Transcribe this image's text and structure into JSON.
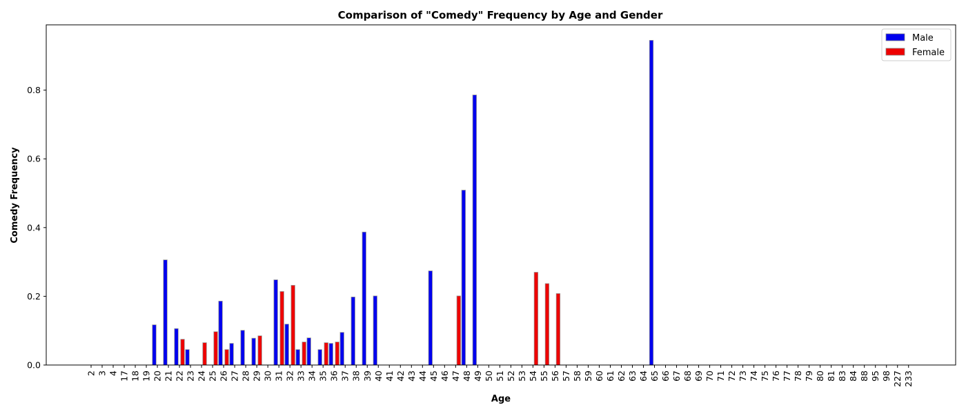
{
  "chart_data": {
    "type": "bar",
    "title": "Comparison of \"Comedy\" Frequency by Age and Gender",
    "xlabel": "Age",
    "ylabel": "Comedy Frequency",
    "ylim": [
      0,
      0.99
    ],
    "yticks": [
      "0.0",
      "0.2",
      "0.4",
      "0.6",
      "0.8"
    ],
    "legend_position": "top-right",
    "grid": false,
    "categories": [
      "2",
      "3",
      "4",
      "17",
      "18",
      "19",
      "20",
      "21",
      "22",
      "23",
      "24",
      "25",
      "26",
      "27",
      "28",
      "29",
      "30",
      "31",
      "32",
      "33",
      "34",
      "35",
      "36",
      "37",
      "38",
      "39",
      "40",
      "41",
      "42",
      "43",
      "44",
      "45",
      "46",
      "47",
      "48",
      "49",
      "50",
      "51",
      "52",
      "53",
      "54",
      "55",
      "56",
      "57",
      "58",
      "59",
      "60",
      "61",
      "62",
      "63",
      "64",
      "65",
      "66",
      "67",
      "68",
      "69",
      "70",
      "71",
      "72",
      "73",
      "74",
      "75",
      "76",
      "77",
      "78",
      "79",
      "80",
      "81",
      "83",
      "84",
      "88",
      "95",
      "98",
      "227",
      "233"
    ],
    "series": [
      {
        "name": "Male",
        "color": "#0000ee",
        "values": [
          0,
          0,
          0,
          0,
          0,
          0,
          0.117,
          0.306,
          0.106,
          0.045,
          0,
          0,
          0.186,
          0.063,
          0.101,
          0.078,
          0,
          0.248,
          0.119,
          0.045,
          0.079,
          0.045,
          0.063,
          0.095,
          0.198,
          0.387,
          0.201,
          0,
          0,
          0,
          0,
          0.274,
          0,
          0,
          0.509,
          0.786,
          0,
          0,
          0,
          0,
          0,
          0,
          0,
          0,
          0,
          0,
          0,
          0,
          0,
          0,
          0,
          0.945,
          0,
          0,
          0,
          0,
          0,
          0,
          0,
          0,
          0,
          0,
          0,
          0,
          0,
          0,
          0,
          0,
          0,
          0,
          0,
          0,
          0,
          0,
          0
        ]
      },
      {
        "name": "Female",
        "color": "#ee0000",
        "values": [
          0,
          0,
          0,
          0,
          0,
          0,
          0,
          0,
          0.075,
          0,
          0.065,
          0.097,
          0.045,
          0,
          0,
          0.085,
          0,
          0.214,
          0.232,
          0.067,
          0,
          0.065,
          0.067,
          0,
          0,
          0,
          0,
          0,
          0,
          0,
          0,
          0,
          0,
          0.201,
          0,
          0,
          0,
          0,
          0,
          0,
          0.27,
          0.237,
          0.208,
          0,
          0,
          0,
          0,
          0,
          0,
          0,
          0,
          0,
          0,
          0,
          0,
          0,
          0,
          0,
          0,
          0,
          0,
          0,
          0,
          0,
          0,
          0,
          0,
          0,
          0,
          0,
          0,
          0,
          0,
          0,
          0
        ]
      }
    ]
  }
}
